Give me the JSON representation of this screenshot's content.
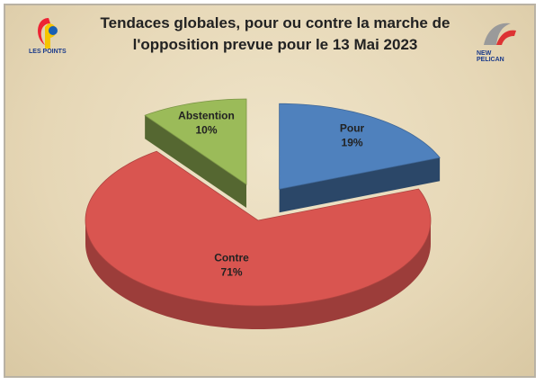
{
  "chart_data": {
    "type": "pie",
    "title": "Tendaces globales, pour ou contre la marche de l'opposition prevue pour le 13 Mai 2023",
    "categories": [
      "Pour",
      "Contre",
      "Abstention"
    ],
    "values": [
      19,
      71,
      10
    ],
    "value_labels": [
      "19%",
      "71%",
      "10%"
    ],
    "colors": [
      "#4f81bd",
      "#d95550",
      "#9bbb59"
    ]
  },
  "logos": {
    "left": "LES POINTS",
    "right": "NEW PELICAN"
  }
}
